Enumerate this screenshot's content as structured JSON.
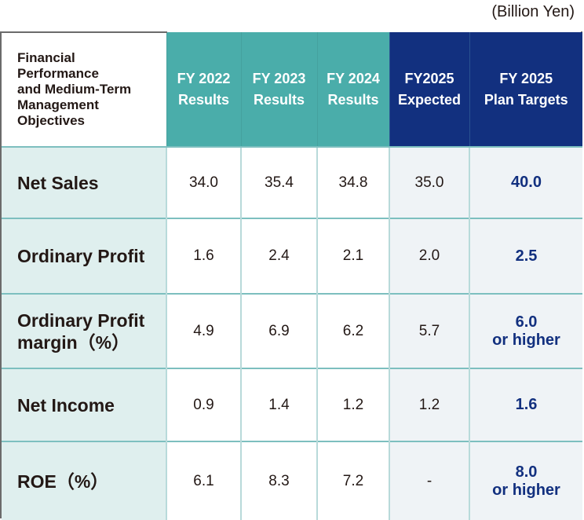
{
  "unit_note": "(Billion Yen)",
  "table": {
    "corner_label": [
      "Financial",
      "Performance",
      "and Medium-Term",
      "Management",
      "Objectives"
    ],
    "columns": [
      {
        "line1": "FY 2022",
        "line2": "Results",
        "group": "results"
      },
      {
        "line1": "FY 2023",
        "line2": "Results",
        "group": "results"
      },
      {
        "line1": "FY 2024",
        "line2": "Results",
        "group": "results"
      },
      {
        "line1": "FY2025",
        "line2": "Expected",
        "group": "forecast"
      },
      {
        "line1": "FY 2025",
        "line2": "Plan Targets",
        "group": "forecast"
      }
    ],
    "rows": [
      {
        "label": [
          "Net Sales"
        ],
        "values": [
          "34.0",
          "35.4",
          "34.8",
          "35.0"
        ],
        "target": [
          "40.0"
        ]
      },
      {
        "label": [
          "Ordinary Profit"
        ],
        "values": [
          "1.6",
          "2.4",
          "2.1",
          "2.0"
        ],
        "target": [
          "2.5"
        ]
      },
      {
        "label": [
          "Ordinary Profit",
          "margin（%）"
        ],
        "values": [
          "4.9",
          "6.9",
          "6.2",
          "5.7"
        ],
        "target": [
          "6.0",
          "or higher"
        ]
      },
      {
        "label": [
          "Net Income"
        ],
        "values": [
          "0.9",
          "1.4",
          "1.2",
          "1.2"
        ],
        "target": [
          "1.6"
        ]
      },
      {
        "label": [
          "ROE（%）"
        ],
        "values": [
          "6.1",
          "8.3",
          "7.2",
          "-"
        ],
        "target": [
          "8.0",
          "or higher"
        ]
      }
    ]
  },
  "colors": {
    "results_header": "#4aadaa",
    "forecast_header": "#12307f",
    "label_bg": "#dfefee",
    "forecast_bg": "#eff3f6",
    "target_text": "#12307f"
  }
}
